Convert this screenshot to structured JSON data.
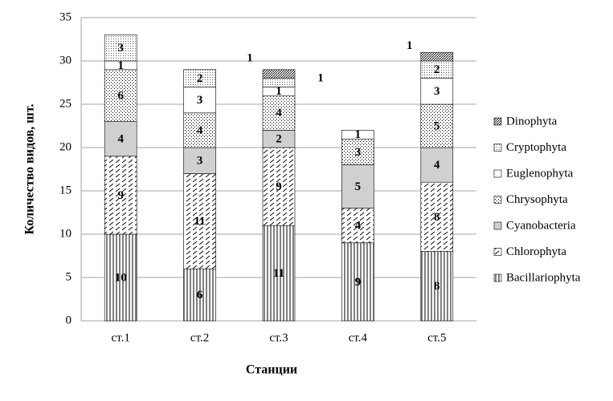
{
  "chart_data": {
    "type": "stacked-bar",
    "x_label": "Станции",
    "y_label": "Количество видов, шт.",
    "categories": [
      "ст.1",
      "ст.2",
      "ст.3",
      "ст.4",
      "ст.5"
    ],
    "series": [
      {
        "name": "Bacillariophyta",
        "values": [
          10,
          6,
          11,
          9,
          8
        ]
      },
      {
        "name": "Chlorophyta",
        "values": [
          9,
          11,
          9,
          4,
          8
        ]
      },
      {
        "name": "Cyanobacteria",
        "values": [
          4,
          3,
          2,
          5,
          4
        ]
      },
      {
        "name": "Chrysophyta",
        "values": [
          6,
          4,
          4,
          3,
          5
        ]
      },
      {
        "name": "Euglenophyta",
        "values": [
          1,
          3,
          1,
          1,
          3
        ]
      },
      {
        "name": "Cryptophyta",
        "values": [
          3,
          2,
          1,
          null,
          2
        ]
      },
      {
        "name": "Dinophyta",
        "values": [
          null,
          null,
          1,
          null,
          1
        ]
      }
    ],
    "ylim": [
      0,
      35
    ],
    "yticks": [
      0,
      5,
      10,
      15,
      20,
      25,
      30,
      35
    ],
    "grid": true,
    "legend": "right"
  }
}
